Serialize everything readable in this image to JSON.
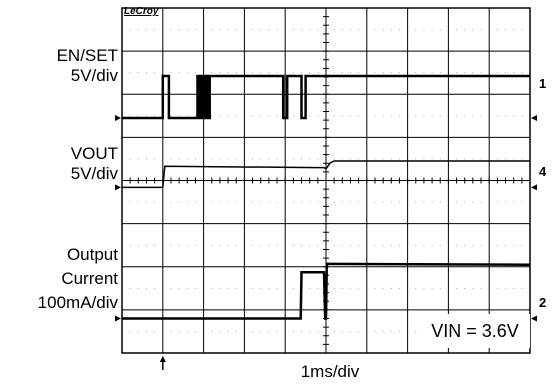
{
  "chart_data": {
    "type": "line",
    "brand": "LeCroy",
    "xlabel": "1ms/div",
    "annotation": "VIN = 3.6V",
    "grid": true,
    "x_range_ms": [
      0,
      10
    ],
    "channel_markers": [
      "1",
      "4",
      "2"
    ],
    "series": [
      {
        "name_lines": [
          "EN/SET",
          "5V/div"
        ],
        "units": "V",
        "ground_ms_div": 3.0,
        "points": [
          [
            0,
            0
          ],
          [
            1.0,
            0
          ],
          [
            1.0,
            5
          ],
          [
            1.15,
            5
          ],
          [
            1.15,
            0
          ],
          [
            1.85,
            0
          ],
          [
            1.85,
            5
          ],
          [
            1.9,
            5
          ],
          [
            1.9,
            0
          ],
          [
            1.95,
            0
          ],
          [
            1.95,
            5
          ],
          [
            2.0,
            5
          ],
          [
            2.0,
            0
          ],
          [
            2.05,
            0
          ],
          [
            2.05,
            5
          ],
          [
            2.1,
            5
          ],
          [
            2.1,
            0
          ],
          [
            2.15,
            0
          ],
          [
            2.15,
            5
          ],
          [
            3.95,
            5
          ],
          [
            3.95,
            0
          ],
          [
            4.05,
            0
          ],
          [
            4.05,
            5
          ],
          [
            4.4,
            5
          ],
          [
            4.4,
            0
          ],
          [
            4.5,
            0
          ],
          [
            4.5,
            5
          ],
          [
            10,
            5
          ]
        ]
      },
      {
        "name_lines": [
          "VOUT",
          "5V/div"
        ],
        "units": "V",
        "points": [
          [
            0,
            0
          ],
          [
            1.0,
            0
          ],
          [
            1.05,
            3.2
          ],
          [
            4.8,
            3.0
          ],
          [
            4.95,
            3.0
          ],
          [
            5.0,
            2.8
          ],
          [
            5.1,
            3.7
          ],
          [
            5.2,
            4.0
          ],
          [
            10,
            4.0
          ]
        ]
      },
      {
        "name_lines": [
          "Output",
          "Current",
          "100mA/div"
        ],
        "units": "mA",
        "points": [
          [
            0,
            0
          ],
          [
            4.38,
            0
          ],
          [
            4.4,
            110
          ],
          [
            4.95,
            110
          ],
          [
            4.98,
            0
          ],
          [
            5.0,
            0
          ],
          [
            5.02,
            130
          ],
          [
            5.1,
            130
          ],
          [
            10,
            128
          ]
        ]
      }
    ]
  }
}
